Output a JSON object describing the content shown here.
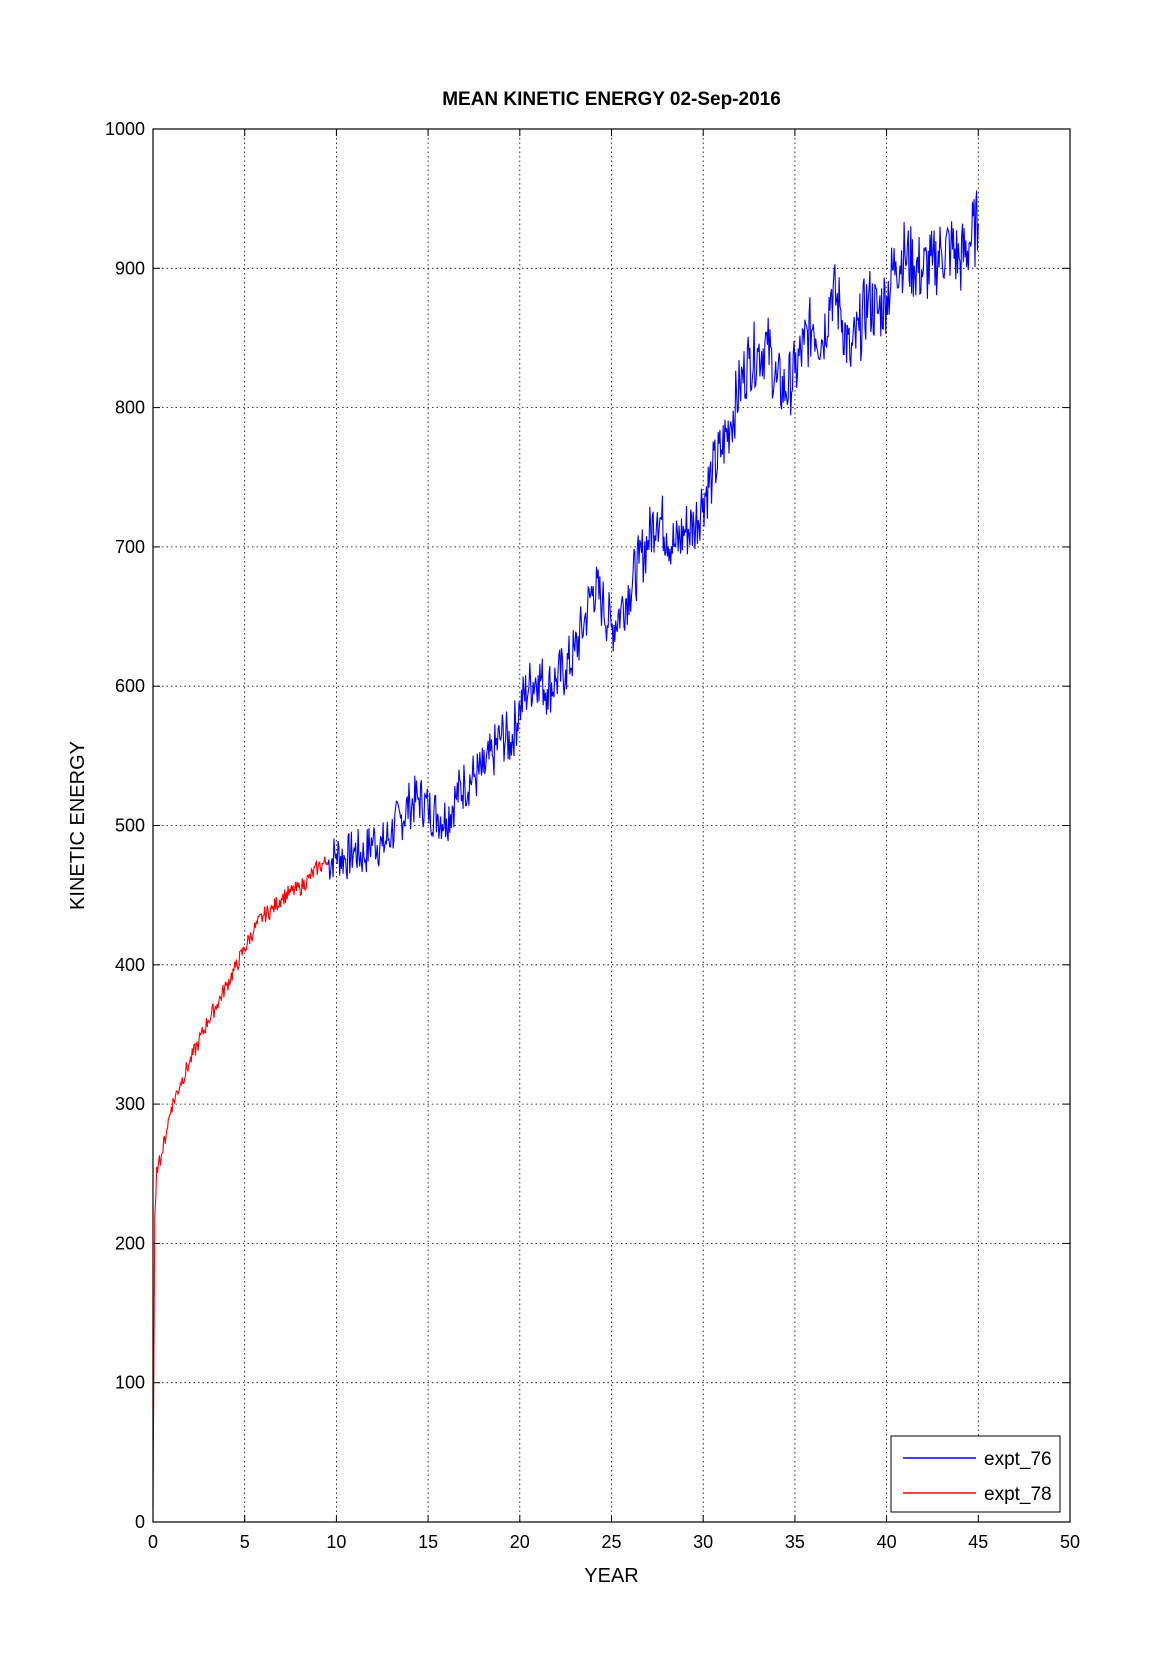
{
  "chart_data": {
    "type": "line",
    "title": "MEAN KINETIC ENERGY 02-Sep-2016",
    "xlabel": "YEAR",
    "ylabel": "KINETIC ENERGY",
    "xlim": [
      0,
      50
    ],
    "ylim": [
      0,
      1000
    ],
    "xticks": [
      0,
      5,
      10,
      15,
      20,
      25,
      30,
      35,
      40,
      45,
      50
    ],
    "yticks": [
      0,
      100,
      200,
      300,
      400,
      500,
      600,
      700,
      800,
      900,
      1000
    ],
    "grid": true,
    "legend_position": "bottom-right",
    "series": [
      {
        "name": "expt_76",
        "color": "#0000ff",
        "x": [
          9.5,
          10,
          10.5,
          11,
          11.5,
          12,
          12.5,
          13,
          13.5,
          14,
          14.5,
          15,
          15.5,
          16,
          16.5,
          17,
          17.5,
          18,
          18.5,
          19,
          19.5,
          20,
          20.5,
          21,
          21.5,
          22,
          22.5,
          23,
          23.5,
          24,
          24.5,
          25,
          25.5,
          26,
          26.5,
          27,
          27.5,
          28,
          28.5,
          29,
          29.5,
          30,
          30.5,
          31,
          31.5,
          32,
          32.5,
          33,
          33.5,
          34,
          34.5,
          35,
          35.5,
          36,
          36.5,
          37,
          37.5,
          38,
          38.5,
          39,
          39.5,
          40,
          40.5,
          41,
          41.5,
          42,
          42.5,
          43,
          43.5,
          44,
          44.5,
          45
        ],
        "y": [
          472,
          480,
          476,
          482,
          478,
          490,
          485,
          495,
          505,
          515,
          520,
          512,
          508,
          505,
          520,
          530,
          535,
          538,
          550,
          565,
          560,
          585,
          600,
          608,
          598,
          605,
          612,
          625,
          645,
          672,
          660,
          642,
          655,
          670,
          688,
          705,
          725,
          710,
          700,
          712,
          715,
          735,
          752,
          770,
          790,
          815,
          835,
          840,
          845,
          818,
          812,
          825,
          845,
          860,
          848,
          885,
          870,
          835,
          855,
          878,
          868,
          880,
          905,
          910,
          902,
          898,
          902,
          912,
          915,
          905,
          918,
          932
        ]
      },
      {
        "name": "expt_78",
        "color": "#ff0000",
        "x": [
          0,
          0.05,
          0.1,
          0.2,
          0.3,
          0.5,
          0.75,
          1,
          1.5,
          2,
          2.5,
          3,
          3.5,
          4,
          4.5,
          5,
          5.5,
          6,
          6.5,
          7,
          7.5,
          8,
          8.5,
          9,
          9.5
        ],
        "y": [
          10,
          120,
          220,
          255,
          258,
          265,
          282,
          298,
          315,
          330,
          345,
          360,
          372,
          385,
          398,
          412,
          425,
          435,
          440,
          448,
          452,
          455,
          462,
          470,
          474
        ]
      }
    ]
  }
}
